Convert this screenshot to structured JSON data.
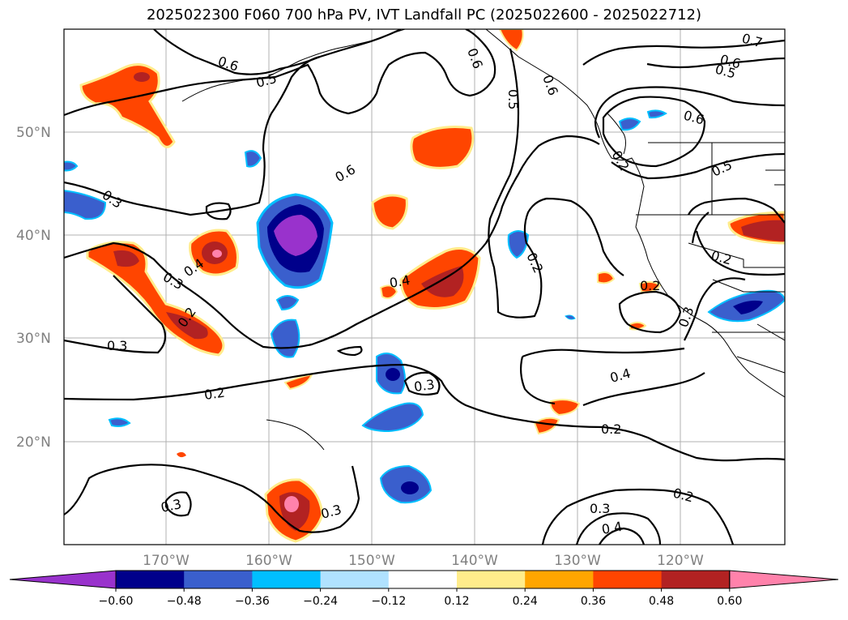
{
  "title": "2025022300 F060 700 hPa PV, IVT Landfall PC (2025022600 - 2025022712)",
  "lat_ticks": [
    "50°N",
    "40°N",
    "30°N",
    "20°N"
  ],
  "lon_ticks": [
    "170°W",
    "160°W",
    "150°W",
    "140°W",
    "130°W",
    "120°W"
  ],
  "colorbar": {
    "tick_labels": [
      "−0.60",
      "−0.48",
      "−0.36",
      "−0.24",
      "−0.12",
      "0.12",
      "0.24",
      "0.36",
      "0.48",
      "0.60"
    ],
    "colors": [
      "#9932cc",
      "#00008b",
      "#3a5fcd",
      "#00bfff",
      "#b0e2ff",
      "#ffffff",
      "#ffec8b",
      "#ffa500",
      "#ff4500",
      "#b22222",
      "#ff82ab"
    ]
  },
  "contour_labels": [
    "0.6",
    "0.5",
    "0.6",
    "0.5",
    "0.6",
    "0.7",
    "0.6",
    "0.5",
    "0.6",
    "0.5",
    "0.3",
    "0.4",
    "0.3",
    "0.2",
    "0.3",
    "0.6",
    "0.4",
    "0.2",
    "0.2",
    "0.2",
    "0.3",
    "0.2",
    "0.2",
    "0.3",
    "0.4",
    "0.2",
    "0.3",
    "0.3",
    "0.2",
    "0.3",
    "0.4"
  ]
}
